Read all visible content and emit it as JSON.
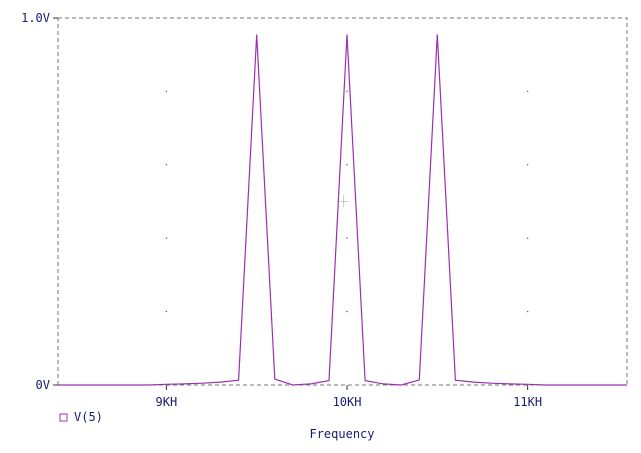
{
  "chart_data": {
    "type": "line",
    "title": "",
    "xlabel": "Frequency",
    "ylabel": "",
    "xlim": [
      8400,
      11550
    ],
    "ylim": [
      0,
      1.0
    ],
    "grid": "dotted",
    "legend_placement": "bottom-left",
    "x_ticks": [
      {
        "value": 9000,
        "label": "9KH"
      },
      {
        "value": 10000,
        "label": "10KH"
      },
      {
        "value": 11000,
        "label": "11KH"
      }
    ],
    "y_ticks": [
      {
        "value": 0,
        "label": "0V"
      },
      {
        "value": 1.0,
        "label": "1.0V"
      }
    ],
    "series": [
      {
        "name": "V(5)",
        "color": "#9b30b0",
        "x": [
          8400,
          8500,
          8600,
          8700,
          8800,
          8900,
          9000,
          9100,
          9200,
          9300,
          9400,
          9500,
          9600,
          9700,
          9800,
          9900,
          10000,
          10100,
          10200,
          10300,
          10400,
          10500,
          10600,
          10700,
          10800,
          10900,
          11000,
          11100,
          11200,
          11300,
          11400,
          11550
        ],
        "y": [
          0.0,
          0.0,
          0.0,
          0.0,
          0.0,
          0.0,
          0.002,
          0.003,
          0.005,
          0.008,
          0.013,
          0.955,
          0.016,
          0.0,
          0.003,
          0.012,
          0.955,
          0.012,
          0.003,
          0.0,
          0.014,
          0.955,
          0.013,
          0.008,
          0.005,
          0.003,
          0.002,
          0.0,
          0.0,
          0.0,
          0.0,
          0.0
        ]
      }
    ]
  }
}
